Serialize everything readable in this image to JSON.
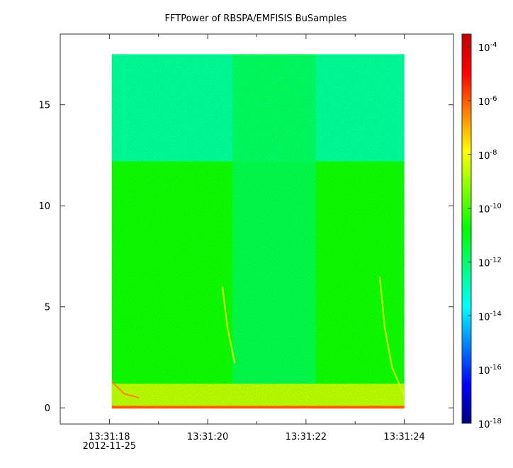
{
  "chart_data": {
    "type": "heatmap",
    "title": "FFTPower of RBSPA/EMFISIS  BuSamples",
    "xlabel": "",
    "ylabel": "",
    "x_ticks": [
      {
        "value": 18,
        "label": "13:31:18",
        "sublabel": "2012-11-25"
      },
      {
        "value": 20,
        "label": "13:31:20"
      },
      {
        "value": 22,
        "label": "13:31:22"
      },
      {
        "value": 24,
        "label": "13:31:24"
      }
    ],
    "x_minor_ticks": [
      17,
      19,
      21,
      23,
      25
    ],
    "xlim": [
      17.0,
      25.0
    ],
    "data_x_range": [
      18.05,
      24.0
    ],
    "ylim": [
      -0.8,
      18.5
    ],
    "y_ticks": [
      0,
      5,
      10,
      15
    ],
    "data_y_range": [
      0,
      17.5
    ],
    "colorbar": {
      "scale": "log",
      "range": [
        1e-18,
        0.0003
      ],
      "tick_exponents": [
        -18,
        -16,
        -14,
        -12,
        -10,
        -8,
        -6,
        -4
      ],
      "tick_base": "10",
      "colors": [
        "#00007f",
        "#0000ff",
        "#0080ff",
        "#00ffff",
        "#00ff80",
        "#00ff00",
        "#80ff00",
        "#ffff00",
        "#ff8000",
        "#ff0000",
        "#c00000"
      ]
    },
    "regions": [
      {
        "name": "upper band",
        "y_range": [
          12.2,
          17.5
        ],
        "level_exponent": -12.6
      },
      {
        "name": "lower band",
        "y_range": [
          0,
          12.2
        ],
        "level_exponent": -10.6
      },
      {
        "name": "central depression",
        "x_range": [
          20.5,
          22.2
        ],
        "level_exponent": -11.8
      },
      {
        "name": "low-frequency floor",
        "y_range": [
          0,
          1.2
        ],
        "level_exponent": -8.5
      }
    ],
    "traces": [
      {
        "name": "chorus-like curve 1",
        "points": [
          [
            18.05,
            1.3
          ],
          [
            18.3,
            0.7
          ],
          [
            18.6,
            0.5
          ]
        ],
        "level_exponent": -6.5
      },
      {
        "name": "curve 2",
        "points": [
          [
            20.3,
            6.0
          ],
          [
            20.4,
            4.0
          ],
          [
            20.55,
            2.2
          ]
        ],
        "level_exponent": -8.5
      },
      {
        "name": "curve 3",
        "points": [
          [
            23.5,
            6.5
          ],
          [
            23.6,
            4.0
          ],
          [
            23.75,
            2.0
          ],
          [
            24.0,
            0.6
          ]
        ],
        "level_exponent": -8.5
      }
    ]
  }
}
